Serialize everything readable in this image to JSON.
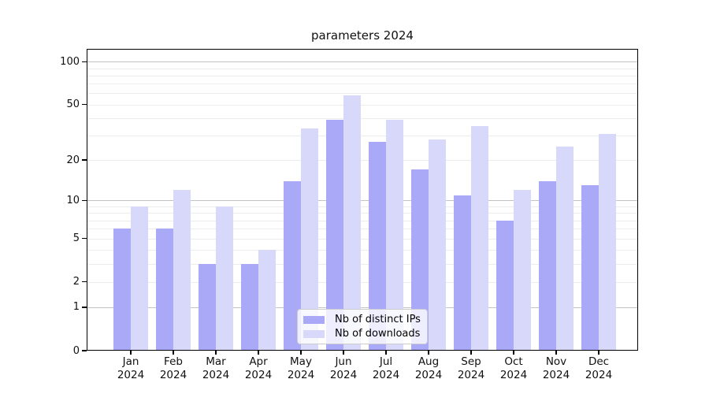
{
  "chart_data": {
    "type": "bar",
    "title": "parameters 2024",
    "categories": [
      "Jan",
      "Feb",
      "Mar",
      "Apr",
      "May",
      "Jun",
      "Jul",
      "Aug",
      "Sep",
      "Oct",
      "Nov",
      "Dec"
    ],
    "x_year": "2024",
    "series": [
      {
        "name": "Nb of distinct IPs",
        "key": "distinct-ips",
        "color": "#a9a9f8",
        "values": [
          6,
          6,
          3,
          3,
          14,
          39,
          27,
          17,
          11,
          7,
          14,
          13
        ]
      },
      {
        "name": "Nb of downloads",
        "key": "downloads",
        "color": "#d8d8fa",
        "values": [
          9,
          12,
          9,
          4,
          34,
          58,
          39,
          28,
          35,
          12,
          25,
          31
        ]
      }
    ],
    "yscale": "log1p",
    "ylim": [
      0,
      123
    ],
    "y_ticks": [
      {
        "value": 0,
        "label": "0"
      },
      {
        "value": 1,
        "label": "1"
      },
      {
        "value": 2,
        "label": "2"
      },
      {
        "value": 5,
        "label": "5"
      },
      {
        "value": 10,
        "label": "10"
      },
      {
        "value": 20,
        "label": "20"
      },
      {
        "value": 50,
        "label": "50"
      },
      {
        "value": 100,
        "label": "100"
      }
    ],
    "y_major_gridlines": [
      1,
      10,
      100
    ],
    "y_minor_gridlines": [
      2,
      3,
      4,
      5,
      6,
      7,
      8,
      9,
      20,
      30,
      40,
      50,
      60,
      70,
      80,
      90
    ],
    "grid": true,
    "legend_position": "lower center"
  },
  "colors": {
    "bar_dark": "#a9a9f8",
    "bar_light": "#d8d8fa",
    "grid_major": "#c3c3c3",
    "grid_minor": "#ececec",
    "spine": "#000000"
  }
}
